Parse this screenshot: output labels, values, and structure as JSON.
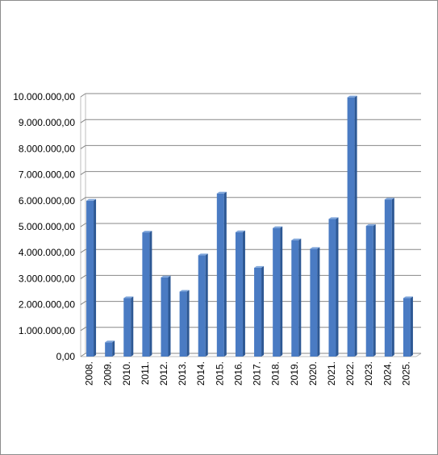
{
  "colors": {
    "bar_front": "#4a7bc3",
    "bar_side": "#2d5894",
    "bar_top": "#7ea5da",
    "grid": "#878787",
    "wall": "#bdbdbd"
  },
  "chart_data": {
    "type": "bar",
    "style": "3d-column",
    "categories": [
      "2008.",
      "2009.",
      "2010.",
      "2011.",
      "2012.",
      "2013.",
      "2014.",
      "2015.",
      "2016.",
      "2017.",
      "2018.",
      "2019.",
      "2020.",
      "2021.",
      "2022.",
      "2023.",
      "2024.",
      "2025."
    ],
    "values": [
      6000000,
      550000,
      2250000,
      4780000,
      3050000,
      2500000,
      3900000,
      6280000,
      4790000,
      3420000,
      4950000,
      4480000,
      4150000,
      5300000,
      9980000,
      5030000,
      6050000,
      2250000
    ],
    "ylim": [
      0,
      10000000
    ],
    "y_ticks": [
      "0,00",
      "1.000.000,00",
      "2.000.000,00",
      "3.000.000,00",
      "4.000.000,00",
      "5.000.000,00",
      "6.000.000,00",
      "7.000.000,00",
      "8.000.000,00",
      "9.000.000,00",
      "10.000.000,00"
    ],
    "grid": true,
    "legend": "none",
    "title": "",
    "xlabel": "",
    "ylabel": ""
  }
}
